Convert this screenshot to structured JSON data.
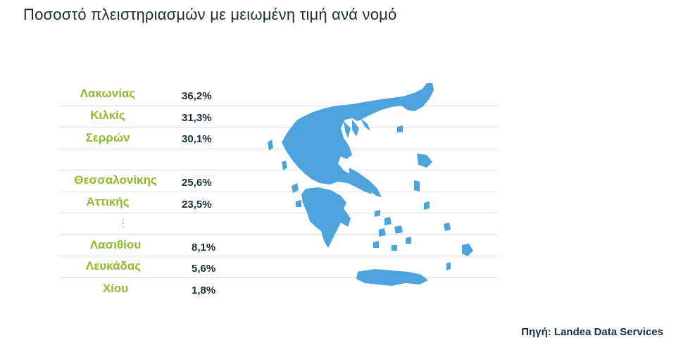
{
  "title": "Ποσοστό πλειστηριασμών με μειωμένη τιμή ανά νομό",
  "source": "Πηγή: Landea Data Services",
  "colors": {
    "label": "#8dbb2c",
    "value": "#1c2d3a",
    "map": "#4da4dd",
    "separator": "#dedede"
  },
  "map_icon": "greece-map",
  "chart_data": {
    "type": "table",
    "title": "Ποσοστό πλειστηριασμών με μειωμένη τιμή ανά νομό",
    "rows": [
      {
        "label": "Λακωνίας",
        "value": "36,2%",
        "number": 36.2
      },
      {
        "label": "Κιλκίς",
        "value": "31,3%",
        "number": 31.3
      },
      {
        "label": "Σερρών",
        "value": "30,1%",
        "number": 30.1
      },
      {
        "label": "Θεσσαλονίκης",
        "value": "25,6%",
        "number": 25.6
      },
      {
        "label": "Αττικής",
        "value": "23,5%",
        "number": 23.5
      },
      {
        "label": "Λασιθίου",
        "value": "8,1%",
        "number": 8.1
      },
      {
        "label": "Λευκάδας",
        "value": "5,6%",
        "number": 5.6
      },
      {
        "label": "Χίου",
        "value": "1,8%",
        "number": 1.8
      }
    ]
  }
}
